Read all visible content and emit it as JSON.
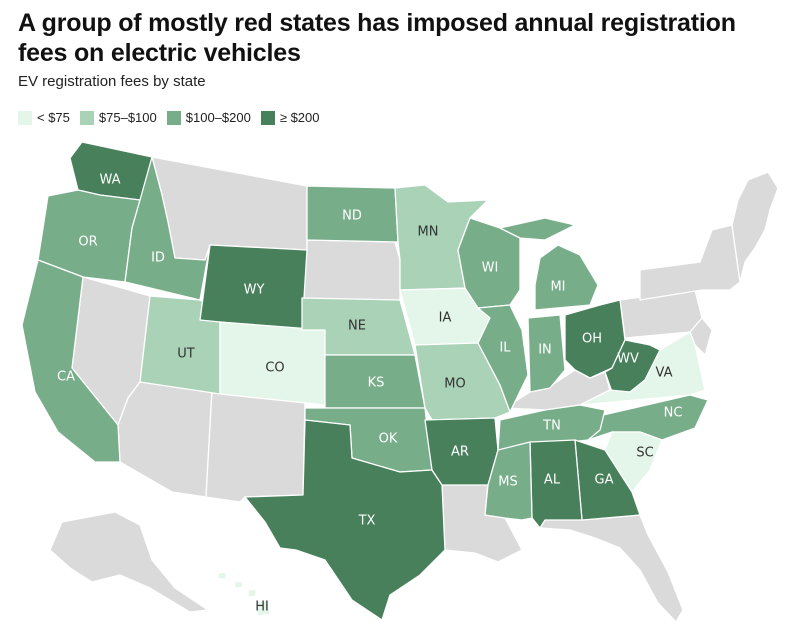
{
  "title": "A group of mostly red states has imposed annual registration fees on electric vehicles",
  "subtitle": "EV registration fees by state",
  "colors": {
    "lt75": "#e4f5ea",
    "75to100": "#a9d2b7",
    "100to200": "#78ad8a",
    "gte200": "#47805a",
    "none": "#dadada",
    "label_light": "#ffffff",
    "label_dark": "#333333"
  },
  "legend": [
    {
      "id": "lt75",
      "label": "< $75"
    },
    {
      "id": "75to100",
      "label": "$75–$100"
    },
    {
      "id": "100to200",
      "label": "$100–$200"
    },
    {
      "id": "gte200",
      "label": "≥ $200"
    }
  ],
  "states": [
    {
      "abbr": "WA",
      "category": "gte200"
    },
    {
      "abbr": "OR",
      "category": "100to200"
    },
    {
      "abbr": "CA",
      "category": "100to200"
    },
    {
      "abbr": "ID",
      "category": "100to200"
    },
    {
      "abbr": "UT",
      "category": "75to100"
    },
    {
      "abbr": "WY",
      "category": "gte200"
    },
    {
      "abbr": "CO",
      "category": "lt75"
    },
    {
      "abbr": "ND",
      "category": "100to200"
    },
    {
      "abbr": "NE",
      "category": "75to100"
    },
    {
      "abbr": "KS",
      "category": "100to200"
    },
    {
      "abbr": "OK",
      "category": "100to200"
    },
    {
      "abbr": "TX",
      "category": "gte200"
    },
    {
      "abbr": "MN",
      "category": "75to100"
    },
    {
      "abbr": "IA",
      "category": "lt75"
    },
    {
      "abbr": "MO",
      "category": "75to100"
    },
    {
      "abbr": "AR",
      "category": "gte200"
    },
    {
      "abbr": "WI",
      "category": "100to200"
    },
    {
      "abbr": "IL",
      "category": "100to200"
    },
    {
      "abbr": "MI",
      "category": "100to200"
    },
    {
      "abbr": "IN",
      "category": "100to200"
    },
    {
      "abbr": "OH",
      "category": "gte200"
    },
    {
      "abbr": "WV",
      "category": "gte200"
    },
    {
      "abbr": "VA",
      "category": "lt75"
    },
    {
      "abbr": "NC",
      "category": "100to200"
    },
    {
      "abbr": "TN",
      "category": "100to200"
    },
    {
      "abbr": "SC",
      "category": "lt75"
    },
    {
      "abbr": "GA",
      "category": "gte200"
    },
    {
      "abbr": "AL",
      "category": "gte200"
    },
    {
      "abbr": "MS",
      "category": "100to200"
    },
    {
      "abbr": "HI",
      "category": "lt75"
    }
  ]
}
